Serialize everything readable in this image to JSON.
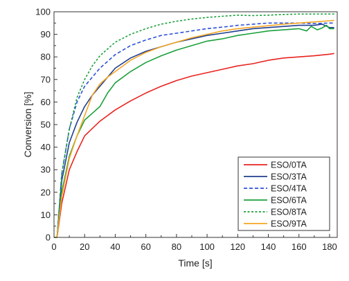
{
  "chart_data": {
    "type": "line",
    "xlabel": "Time [s]",
    "ylabel": "Conversion [%]",
    "xlim": [
      0,
      185
    ],
    "ylim": [
      0,
      100
    ],
    "xticks": [
      0,
      20,
      40,
      60,
      80,
      100,
      120,
      140,
      160,
      180
    ],
    "yticks": [
      0,
      10,
      20,
      30,
      40,
      50,
      60,
      70,
      80,
      90,
      100
    ],
    "grid": false,
    "legend_position": "bottom-right",
    "series": [
      {
        "name": "ESO/0TA",
        "color": "#e8231f",
        "dash": "solid",
        "x": [
          0,
          2,
          5,
          10,
          15,
          20,
          30,
          40,
          50,
          60,
          70,
          80,
          90,
          100,
          110,
          120,
          130,
          140,
          150,
          160,
          170,
          180,
          183
        ],
        "y": [
          0,
          0,
          15,
          30,
          38,
          45,
          51.5,
          56.5,
          60.5,
          64,
          67,
          69.5,
          71.5,
          73,
          74.5,
          76,
          77,
          78.5,
          79.5,
          80,
          80.5,
          81.2,
          81.5
        ]
      },
      {
        "name": "ESO/3TA",
        "color": "#1f3e8c",
        "dash": "solid",
        "x": [
          0,
          2,
          5,
          10,
          15,
          20,
          25,
          30,
          35,
          40,
          50,
          60,
          70,
          80,
          90,
          100,
          110,
          120,
          130,
          140,
          150,
          160,
          170,
          175,
          180,
          183
        ],
        "y": [
          0,
          0,
          25,
          42,
          51,
          58,
          63,
          67,
          71,
          75,
          79.5,
          82.5,
          84.5,
          86.5,
          88,
          89.5,
          90.5,
          91.5,
          92.5,
          93,
          93.5,
          94,
          94,
          94.5,
          93,
          93
        ]
      },
      {
        "name": "ESO/4TA",
        "color": "#2b4fd8",
        "dash": "dashed",
        "x": [
          0,
          2,
          5,
          10,
          15,
          20,
          25,
          30,
          40,
          50,
          60,
          70,
          80,
          90,
          100,
          110,
          120,
          130,
          140,
          150,
          160,
          170,
          180,
          183
        ],
        "y": [
          0,
          0,
          28,
          48,
          60,
          67,
          71,
          75,
          81,
          85,
          87.5,
          89.5,
          90.5,
          91.5,
          92.5,
          93.2,
          94,
          94.5,
          95,
          95,
          95,
          94.8,
          95,
          95
        ]
      },
      {
        "name": "ESO/6TA",
        "color": "#1aa03a",
        "dash": "solid",
        "x": [
          0,
          2,
          5,
          10,
          15,
          20,
          25,
          30,
          35,
          40,
          50,
          60,
          70,
          80,
          90,
          100,
          110,
          120,
          130,
          140,
          150,
          160,
          165,
          168,
          172,
          175,
          178,
          180,
          183
        ],
        "y": [
          0,
          0,
          20,
          36,
          45,
          52,
          55,
          58,
          64,
          68.5,
          73.5,
          77.5,
          80.5,
          83,
          85,
          87,
          88,
          89.5,
          90.5,
          91.5,
          92,
          92.5,
          91.5,
          93.5,
          92,
          92.8,
          94,
          92.5,
          92.5
        ]
      },
      {
        "name": "ESO/8TA",
        "color": "#1aa03a",
        "dash": "dotted",
        "x": [
          0,
          2,
          5,
          10,
          15,
          20,
          25,
          30,
          40,
          50,
          60,
          70,
          80,
          90,
          100,
          110,
          120,
          130,
          140,
          150,
          160,
          170,
          180,
          183
        ],
        "y": [
          0,
          0,
          28,
          48,
          62,
          70,
          76,
          80.5,
          86.5,
          90,
          92.5,
          94.5,
          95.8,
          96.8,
          97.5,
          98,
          98.5,
          98.3,
          98.5,
          98.8,
          99,
          99,
          99,
          99
        ]
      },
      {
        "name": "ESO/9TA",
        "color": "#f5a623",
        "dash": "solid",
        "x": [
          0,
          2,
          5,
          10,
          15,
          20,
          25,
          30,
          35,
          40,
          50,
          60,
          70,
          80,
          90,
          100,
          110,
          120,
          130,
          140,
          150,
          160,
          170,
          180,
          183
        ],
        "y": [
          0,
          0,
          18,
          35,
          45,
          54,
          63,
          68,
          71,
          73.5,
          78.5,
          82,
          84.5,
          86.5,
          88.5,
          90,
          91.5,
          92.5,
          93.2,
          93.8,
          94.5,
          95,
          95.5,
          96,
          96.2
        ]
      }
    ]
  }
}
